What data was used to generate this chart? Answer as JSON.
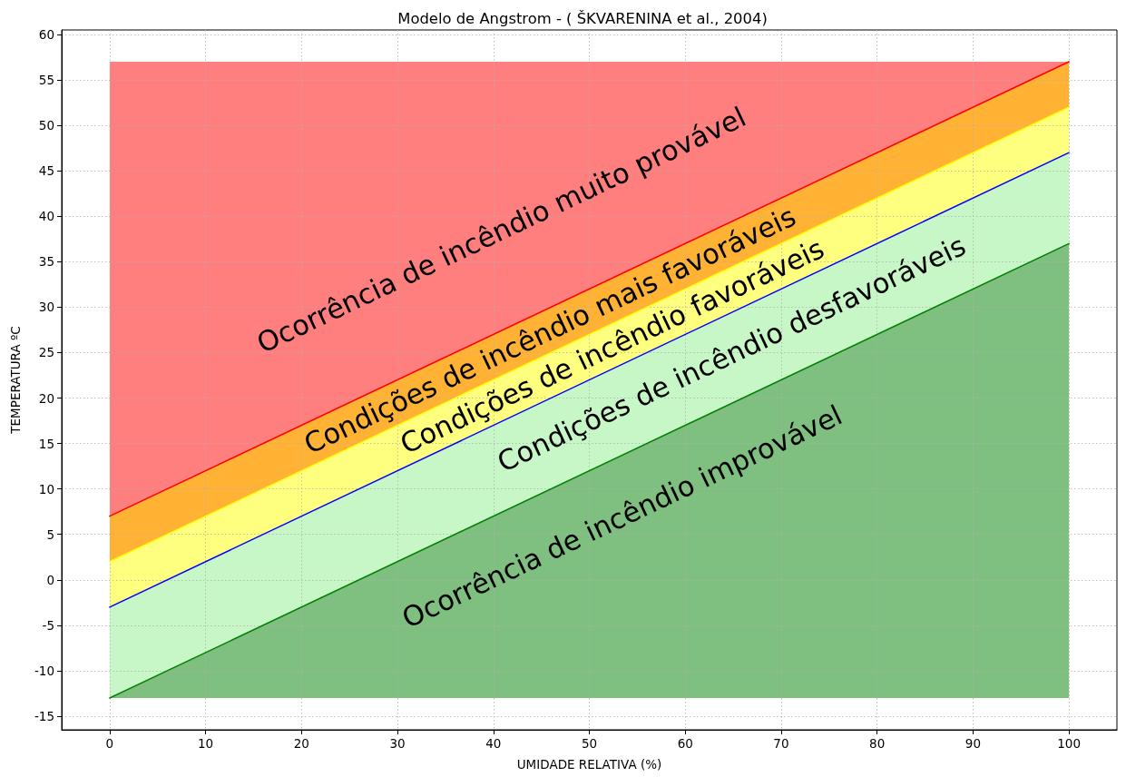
{
  "chart_data": {
    "type": "line",
    "title": "Modelo de Angstrom - ( ŠKVARENINA et al., 2004)",
    "xlabel": "UMIDADE RELATIVA (%)",
    "ylabel": "TEMPERATURA ºC",
    "x": [
      0,
      100
    ],
    "series": [
      {
        "type": "area",
        "color": "#ff7f7f",
        "values": [
          null,
          null
        ],
        "upper": [
          57,
          57
        ],
        "lower": [
          7,
          57
        ]
      },
      {
        "type": "area",
        "color": "#ffb233",
        "values": [
          null,
          null
        ],
        "upper": [
          7,
          57
        ],
        "lower": [
          2,
          52
        ]
      },
      {
        "type": "area",
        "color": "#ffff7f",
        "values": [
          null,
          null
        ],
        "upper": [
          2,
          52
        ],
        "lower": [
          -3,
          47
        ]
      },
      {
        "type": "area",
        "color": "#c7f6c7",
        "values": [
          null,
          null
        ],
        "upper": [
          -3,
          47
        ],
        "lower": [
          -13,
          37
        ]
      },
      {
        "type": "area",
        "color": "#7fbf7f",
        "values": [
          null,
          null
        ],
        "upper": [
          -13,
          37
        ],
        "lower": [
          -13,
          -13
        ]
      },
      {
        "color": "#ff0000",
        "values": [
          7,
          57
        ]
      },
      {
        "color": "#ffff00",
        "values": [
          2,
          52
        ]
      },
      {
        "color": "#0000ff",
        "values": [
          -3,
          47
        ]
      },
      {
        "color": "#008000",
        "values": [
          -13,
          37
        ]
      }
    ],
    "annotations": [
      "Ocorrência de incêndio muito provável",
      "Condições de incêndio mais favoráveis",
      "Condições de incêndio favoráveis",
      "Condições de incêndio desfavoráveis",
      "Ocorrência de incêndio improvável"
    ],
    "xlim": [
      -5,
      105
    ],
    "ylim": [
      -16.5,
      60.5
    ],
    "xticks": [
      0,
      10,
      20,
      30,
      40,
      50,
      60,
      70,
      80,
      90,
      100
    ],
    "yticks": [
      -15,
      -10,
      -5,
      0,
      5,
      10,
      15,
      20,
      25,
      30,
      35,
      40,
      45,
      50,
      55,
      60
    ],
    "grid": true,
    "marker": "none",
    "line_style": "solid"
  }
}
